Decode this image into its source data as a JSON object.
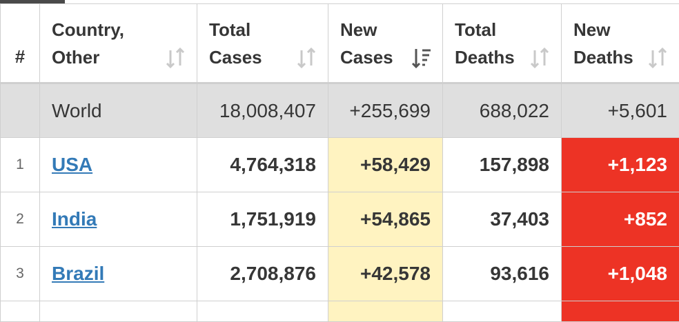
{
  "table": {
    "headers": {
      "hash": "#",
      "country": [
        "Country,",
        "Other"
      ],
      "total_cases": [
        "Total",
        "Cases"
      ],
      "new_cases": [
        "New",
        "Cases"
      ],
      "total_deaths": [
        "Total",
        "Deaths"
      ],
      "new_deaths": [
        "New",
        "Deaths"
      ]
    },
    "world": {
      "country": "World",
      "total_cases": "18,008,407",
      "new_cases": "+255,699",
      "total_deaths": "688,022",
      "new_deaths": "+5,601"
    },
    "rows": [
      {
        "rank": "1",
        "country": "USA",
        "total_cases": "4,764,318",
        "new_cases": "+58,429",
        "total_deaths": "157,898",
        "new_deaths": "+1,123"
      },
      {
        "rank": "2",
        "country": "India",
        "total_cases": "1,751,919",
        "new_cases": "+54,865",
        "total_deaths": "37,403",
        "new_deaths": "+852"
      },
      {
        "rank": "3",
        "country": "Brazil",
        "total_cases": "2,708,876",
        "new_cases": "+42,578",
        "total_deaths": "93,616",
        "new_deaths": "+1,048"
      }
    ],
    "colors": {
      "new_cases_highlight": "#fff3c1",
      "new_deaths_highlight": "#ed3325",
      "world_row": "#dfdfdf",
      "link": "#337ab7"
    },
    "icons": {
      "sort_idle": "sort-arrows-icon",
      "sort_active": "sort-descending-icon"
    }
  }
}
